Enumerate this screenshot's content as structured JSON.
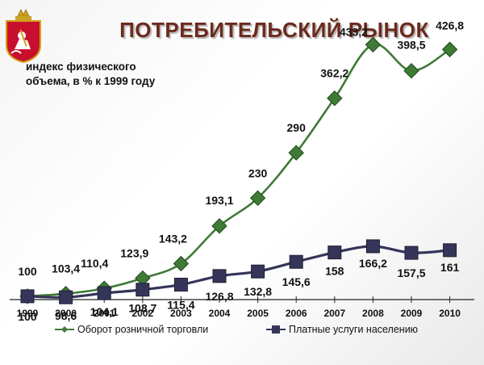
{
  "title": "ПОТРЕБИТЕЛЬСКИЙ РЫНОК",
  "subtitle_line1": "индекс физического",
  "subtitle_line2": "объема, в % к 1999 году",
  "emblem_icon": "moscow-oblast-coat-of-arms-icon",
  "colors": {
    "title": "#6b2a1e",
    "retail": "#3f7a36",
    "services": "#35355a"
  },
  "chart_data": {
    "type": "line",
    "categories": [
      "1999",
      "2000",
      "2001",
      "2002",
      "2003",
      "2004",
      "2005",
      "2006",
      "2007",
      "2008",
      "2009",
      "2010"
    ],
    "ylim": [
      60,
      450
    ],
    "grid": false,
    "legend_position": "bottom",
    "series": [
      {
        "name": "Оборот розничной торговли",
        "values": [
          100,
          103.4,
          110.4,
          123.9,
          143.2,
          193.1,
          230,
          290,
          362.2,
          433.2,
          398.5,
          426.8
        ],
        "labels": [
          "100",
          "103,4",
          "110,4",
          "123,9",
          "143,2",
          "193,1",
          "230",
          "290",
          "362,2",
          "433,2",
          "398,5",
          "426,8"
        ]
      },
      {
        "name": "Платные услуги населению",
        "values": [
          100,
          98.6,
          104.1,
          108.7,
          115.4,
          126.8,
          132.8,
          145.6,
          158,
          166.2,
          157.5,
          161
        ],
        "labels": [
          "100",
          "98,6",
          "104,1",
          "108,7",
          "115,4",
          "126,8",
          "132,8",
          "145,6",
          "158",
          "166,2",
          "157,5",
          "161"
        ]
      }
    ]
  }
}
